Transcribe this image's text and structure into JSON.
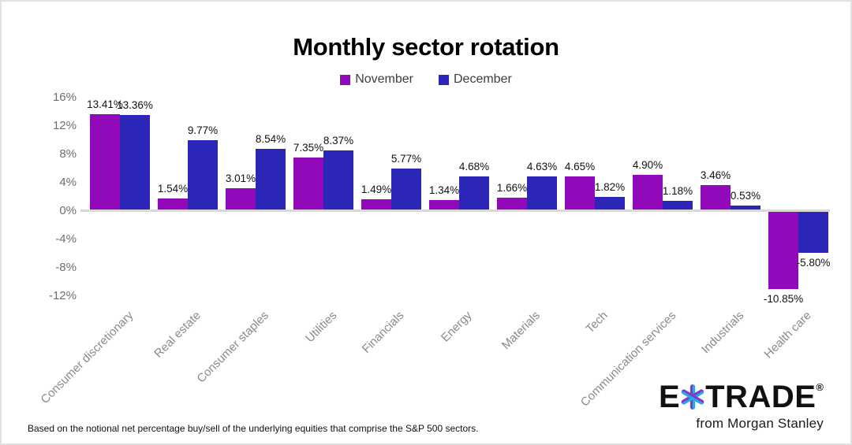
{
  "page": {
    "title": "Monthly sector rotation",
    "footnote": "Based on the notional net percentage buy/sell of the underlying equities that comprise the S&P 500 sectors."
  },
  "legend": [
    {
      "label": "November",
      "color": "#9209ba"
    },
    {
      "label": "December",
      "color": "#2b26b8"
    }
  ],
  "logo": {
    "e": "E",
    "trade": "TRADE",
    "registered": "®",
    "tagline": "from Morgan Stanley",
    "star_icon": "etrade-asterisk-icon",
    "star_purple": "#7a3bd7",
    "star_blue": "#31a6de"
  },
  "chart_data": {
    "type": "bar",
    "title": "Monthly sector rotation",
    "categories": [
      "Consumer discretionary",
      "Real estate",
      "Consumer staples",
      "Utilities",
      "Financials",
      "Energy",
      "Materials",
      "Tech",
      "Communication services",
      "Industrials",
      "Health care"
    ],
    "series": [
      {
        "name": "November",
        "color": "#9209ba",
        "values": [
          13.41,
          1.54,
          3.01,
          7.35,
          1.49,
          1.34,
          1.66,
          4.65,
          4.9,
          3.46,
          -10.85
        ]
      },
      {
        "name": "December",
        "color": "#2b26b8",
        "values": [
          13.36,
          9.77,
          8.54,
          8.37,
          5.77,
          4.68,
          4.63,
          1.82,
          1.18,
          0.53,
          -5.8
        ]
      }
    ],
    "value_labels": [
      [
        "13.41%",
        "1.54%",
        "3.01%",
        "7.35%",
        "1.49%",
        "1.34%",
        "1.66%",
        "4.65%",
        "4.90%",
        "3.46%",
        "-10.85%"
      ],
      [
        "13.36%",
        "9.77%",
        "8.54%",
        "8.37%",
        "5.77%",
        "4.68%",
        "4.63%",
        "1.82%",
        "1.18%",
        "0.53%",
        "-5.80%"
      ]
    ],
    "xlabel": "",
    "ylabel": "",
    "y_ticks": [
      "16%",
      "12%",
      "8%",
      "4%",
      "0%",
      "-4%",
      "-8%",
      "-12%"
    ],
    "y_tick_values": [
      16,
      12,
      8,
      4,
      0,
      -4,
      -8,
      -12
    ],
    "ylim": [
      -12,
      16
    ],
    "grid": false,
    "legend_position": "top"
  }
}
